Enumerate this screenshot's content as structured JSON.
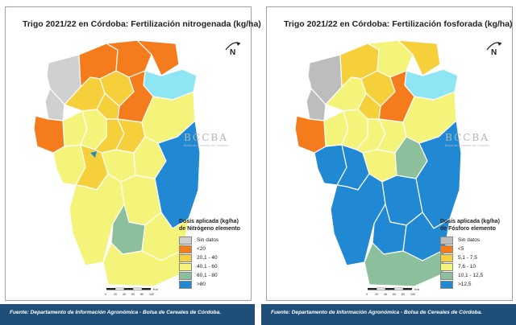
{
  "panels": [
    {
      "title": "Trigo 2021/22 en Córdoba: Fertilización nitrogenada (kg/ha)",
      "north": "N",
      "legend": {
        "title_line1": "Dosis aplicada (kg/ha)",
        "title_line2": "de Nitrógeno elemento",
        "items": [
          {
            "label": "Sin datos",
            "color": "#d0d0d0"
          },
          {
            "label": "<20",
            "color": "#f47c1c"
          },
          {
            "label": "20,1 - 40",
            "color": "#f5d03b"
          },
          {
            "label": "40,1 - 60",
            "color": "#f4f47a"
          },
          {
            "label": "60,1 - 80",
            "color": "#8cbf9c"
          },
          {
            "label": ">80",
            "color": "#2189d4"
          }
        ]
      },
      "footer": "Fuente: Departamento de Información Agronómica - Bolsa de Cereales de Córdoba.",
      "watermark": {
        "logo": "BCCBA",
        "subtitle": "Bolsa de Cereales de Córdoba"
      }
    },
    {
      "title": "Trigo 2021/22 en Córdoba: Fertilización fosforada (kg/ha)",
      "north": "N",
      "legend": {
        "title_line1": "Dosis aplicada (kg/ha)",
        "title_line2": "de Fósforo elemento",
        "items": [
          {
            "label": "Sin datos",
            "color": "#bdbdbd"
          },
          {
            "label": "<5",
            "color": "#f47c1c"
          },
          {
            "label": "5,1 - 7,5",
            "color": "#f5d03b"
          },
          {
            "label": "7,6 - 10",
            "color": "#f4f47a"
          },
          {
            "label": "10,1 - 12,5",
            "color": "#8cbf9c"
          },
          {
            "label": ">12,5",
            "color": "#2189d4"
          }
        ]
      },
      "footer": "Fuente: Departamento de Información Agronómica - Bolsa de Cereales de Córdoba.",
      "watermark": {
        "logo": "BCCBA",
        "subtitle": "Bolsa de Cereales de Córdoba"
      }
    }
  ],
  "scale": {
    "unit": "Km",
    "ticks": [
      "0",
      "20",
      "40",
      "60",
      "80",
      "100"
    ]
  }
}
